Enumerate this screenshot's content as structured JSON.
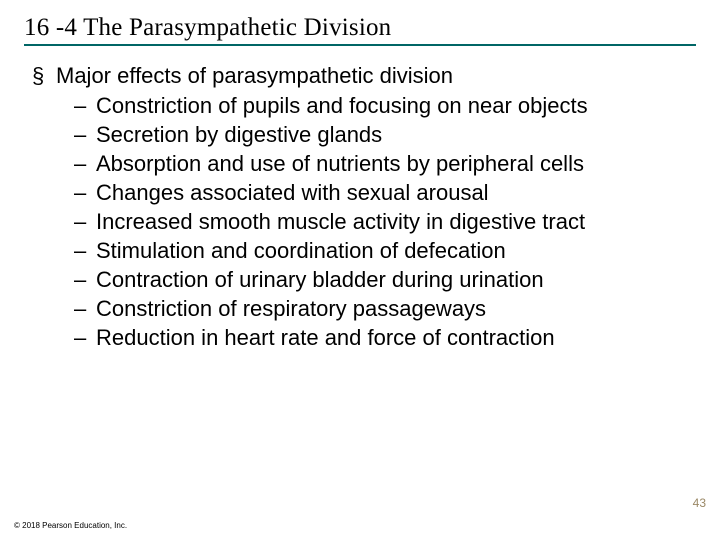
{
  "title": "16 -4 The Parasympathetic Division",
  "underline_color": "#006666",
  "background_color": "#ffffff",
  "text_color": "#000000",
  "title_font_family": "Times New Roman",
  "body_font_family": "Arial",
  "title_fontsize": 25,
  "body_fontsize": 22,
  "lvl1": {
    "bullet_char": "§",
    "text": "Major effects of parasympathetic division"
  },
  "lvl2_items": [
    "Constriction of pupils and focusing on near objects",
    "Secretion by digestive glands",
    "Absorption and use of nutrients by peripheral cells",
    "Changes associated with sexual arousal",
    "Increased smooth muscle activity in digestive tract",
    "Stimulation and coordination of defecation",
    "Contraction of urinary bladder during urination",
    "Constriction of respiratory passageways",
    "Reduction in heart rate and force of contraction"
  ],
  "page_number": "43",
  "page_number_color": "#9a8866",
  "copyright": "© 2018 Pearson Education, Inc.",
  "slide_width": 720,
  "slide_height": 540
}
